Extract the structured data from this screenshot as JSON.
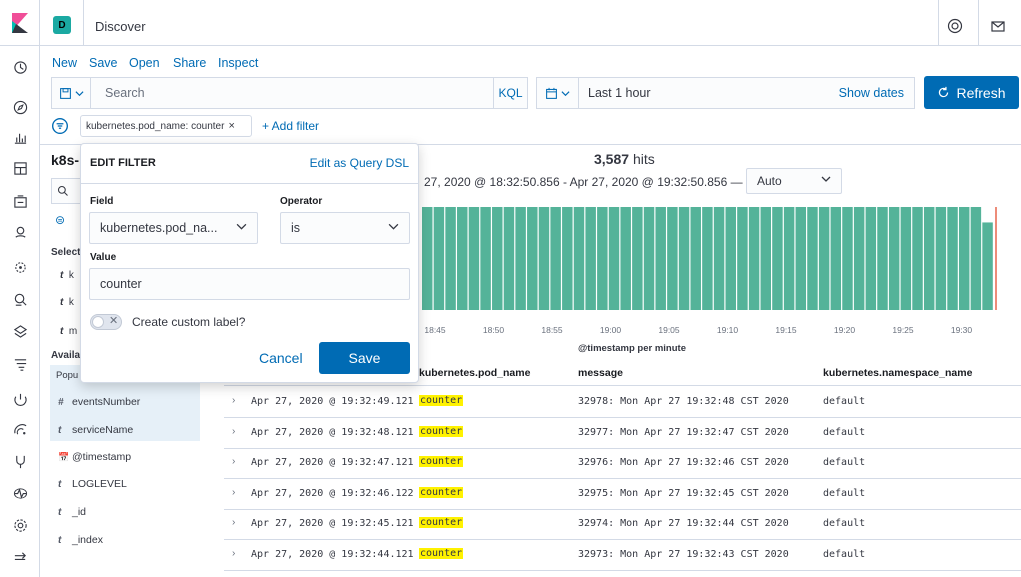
{
  "header": {
    "space_initial": "D",
    "title": "Discover"
  },
  "topmenu": {
    "new": "New",
    "save": "Save",
    "open": "Open",
    "share": "Share",
    "inspect": "Inspect"
  },
  "query": {
    "placeholder": "Search",
    "language": "KQL"
  },
  "time": {
    "range": "Last 1 hour",
    "show_dates": "Show dates",
    "refresh": "Refresh"
  },
  "filters": {
    "pill": "kubernetes.pod_name: counter",
    "add": "+ Add filter"
  },
  "sidebar": {
    "index_title": "k8s-",
    "selected_heading": "Select",
    "selected_fields": [
      {
        "type": "t",
        "name": "k"
      },
      {
        "type": "t",
        "name": "k"
      },
      {
        "type": "t",
        "name": "m"
      }
    ],
    "available_heading": "Availa",
    "popular_heading": "Popu",
    "fields": [
      {
        "type": "#",
        "name": "eventsNumber"
      },
      {
        "type": "t",
        "name": "serviceName"
      },
      {
        "type": "📅",
        "name": "@timestamp"
      },
      {
        "type": "t",
        "name": "LOGLEVEL"
      },
      {
        "type": "t",
        "name": "_id"
      },
      {
        "type": "t",
        "name": "_index"
      }
    ]
  },
  "results": {
    "hits": "3,587",
    "hits_label": "hits",
    "time_span": "27, 2020 @ 18:32:50.856 - Apr 27, 2020 @ 19:32:50.856 —",
    "interval": "Auto"
  },
  "chart_data": {
    "type": "bar",
    "xlabel": "@timestamp per minute",
    "ylabel": "",
    "tick_labels": [
      "18:45",
      "18:50",
      "18:55",
      "19:00",
      "19:05",
      "19:10",
      "19:15",
      "19:20",
      "19:25",
      "19:30"
    ],
    "visible_bars": 49,
    "values": [
      60,
      60,
      60,
      60,
      60,
      60,
      60,
      60,
      60,
      60,
      60,
      60,
      60,
      60,
      60,
      60,
      60,
      60,
      60,
      60,
      60,
      60,
      60,
      60,
      60,
      60,
      60,
      60,
      60,
      60,
      60,
      60,
      60,
      60,
      60,
      60,
      60,
      60,
      60,
      60,
      60,
      60,
      60,
      60,
      60,
      60,
      60,
      60,
      51
    ],
    "ylim": [
      0,
      60
    ],
    "bar_color": "#54b399",
    "now_marker_color": "#e7664c"
  },
  "table": {
    "columns": [
      "kubernetes.pod_name",
      "message",
      "kubernetes.namespace_name"
    ],
    "rows": [
      {
        "time": "Apr 27, 2020 @ 19:32:49.121",
        "pod": "counter",
        "message": "32978: Mon Apr 27 19:32:48 CST 2020",
        "namespace": "default"
      },
      {
        "time": "Apr 27, 2020 @ 19:32:48.121",
        "pod": "counter",
        "message": "32977: Mon Apr 27 19:32:47 CST 2020",
        "namespace": "default"
      },
      {
        "time": "Apr 27, 2020 @ 19:32:47.121",
        "pod": "counter",
        "message": "32976: Mon Apr 27 19:32:46 CST 2020",
        "namespace": "default"
      },
      {
        "time": "Apr 27, 2020 @ 19:32:46.122",
        "pod": "counter",
        "message": "32975: Mon Apr 27 19:32:45 CST 2020",
        "namespace": "default"
      },
      {
        "time": "Apr 27, 2020 @ 19:32:45.121",
        "pod": "counter",
        "message": "32974: Mon Apr 27 19:32:44 CST 2020",
        "namespace": "default"
      },
      {
        "time": "Apr 27, 2020 @ 19:32:44.121",
        "pod": "counter",
        "message": "32973: Mon Apr 27 19:32:43 CST 2020",
        "namespace": "default"
      }
    ]
  },
  "popover": {
    "title": "EDIT FILTER",
    "edit_dsl": "Edit as Query DSL",
    "field_label": "Field",
    "field_value": "kubernetes.pod_na...",
    "operator_label": "Operator",
    "operator_value": "is",
    "value_label": "Value",
    "value_value": "counter",
    "custom_label": "Create custom label?",
    "cancel": "Cancel",
    "save": "Save"
  },
  "colors": {
    "accent": "#006bb4",
    "highlight": "#fff200",
    "badge": "#1ba9a2"
  }
}
